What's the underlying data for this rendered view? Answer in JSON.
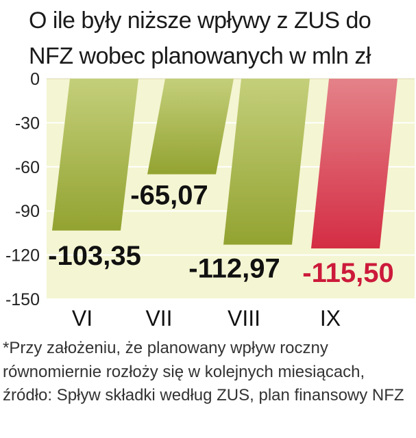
{
  "title": "O ile były niższe wpływy z ZUS do NFZ wobec planowanych w mln zł",
  "footnote": "*Przy założeniu, że planowany wpływ roczny równomiernie rozłoży się w kolejnych miesiącach, źródło: Spływ składki według ZUS, plan finansowy NFZ",
  "colors": {
    "plot_background": "#f4f5d2",
    "bar_green": "#9aaa3c",
    "bar_red": "#d63a4b",
    "label_dark": "#111111",
    "label_red": "#cc1a3b"
  },
  "chart_data": {
    "type": "bar",
    "categories": [
      "VI",
      "VII",
      "VIII",
      "IX"
    ],
    "values": [
      -103.35,
      -65.07,
      -112.97,
      -115.5
    ],
    "data_labels": [
      "-103,35",
      "-65,07",
      "-112,97",
      "-115,50"
    ],
    "ylim": [
      -150,
      0
    ],
    "yticks": [
      "0",
      "-30",
      "-60",
      "-90",
      "-120",
      "-150"
    ],
    "ytick_values": [
      0,
      -30,
      -60,
      -90,
      -120,
      -150
    ],
    "grid": true,
    "title": "O ile były niższe wpływy z ZUS do NFZ wobec planowanych w mln zł",
    "xlabel": "",
    "ylabel": ""
  }
}
